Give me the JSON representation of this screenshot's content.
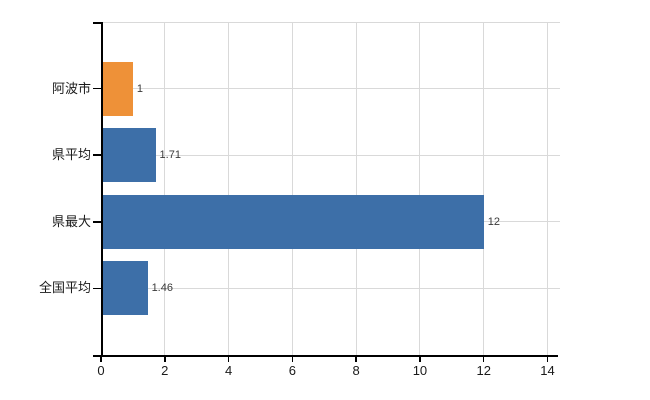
{
  "chart_data": {
    "type": "bar",
    "orientation": "horizontal",
    "title": "",
    "xlabel": "",
    "ylabel": "",
    "categories": [
      "阿波市",
      "県平均",
      "県最大",
      "全国平均"
    ],
    "values": [
      1,
      1.71,
      12,
      1.46
    ],
    "value_labels": [
      "1",
      "1.71",
      "12",
      "1.46"
    ],
    "bar_colors": [
      "#EE9138",
      "#3D6FA8",
      "#3D6FA8",
      "#3D6FA8"
    ],
    "xlim": [
      0,
      14.4
    ],
    "xticks": [
      0,
      2,
      4,
      6,
      8,
      10,
      12,
      14
    ],
    "xtick_labels": [
      "0",
      "2",
      "4",
      "6",
      "8",
      "10",
      "12",
      "14"
    ],
    "grid": "on",
    "legend": "none",
    "colors": {
      "highlight_bar": "#EE9138",
      "default_bar": "#3D6FA8",
      "gridline": "#d9d9d9",
      "axis": "#000000",
      "category_text": "#1a1a1a",
      "value_text": "#3a3a3a",
      "background": "#ffffff"
    }
  }
}
